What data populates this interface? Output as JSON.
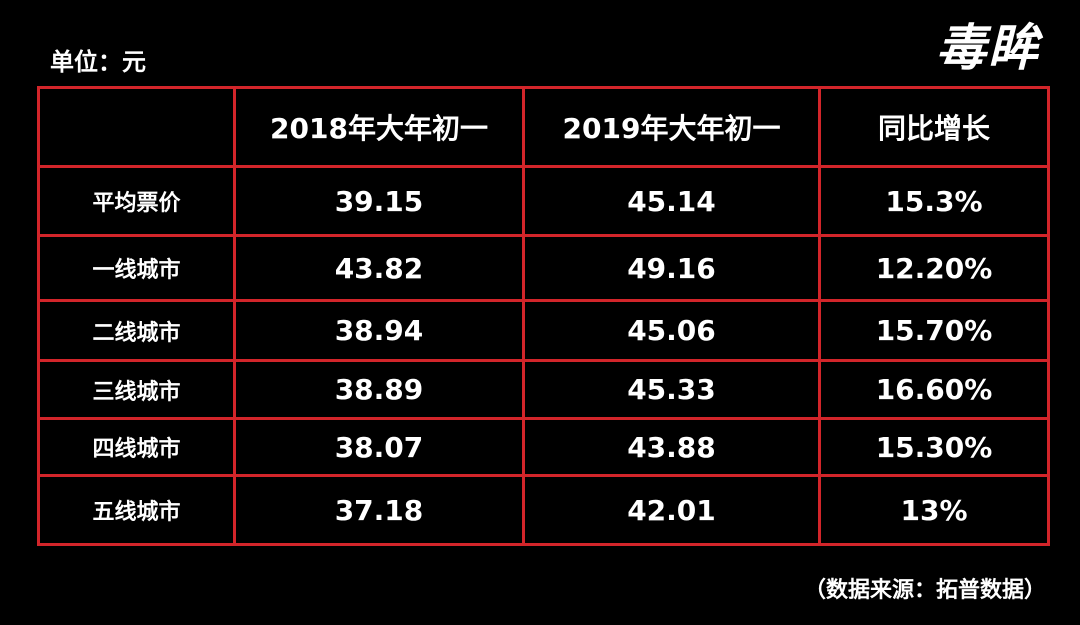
{
  "header": {
    "unit": "单位：元",
    "logo": "毒眸"
  },
  "table": {
    "columns": [
      "",
      "2018年大年初一",
      "2019年大年初一",
      "同比增长"
    ],
    "rows": [
      [
        "平均票价",
        "39.15",
        "45.14",
        "15.3%"
      ],
      [
        "一线城市",
        "43.82",
        "49.16",
        "12.20%"
      ],
      [
        "二线城市",
        "38.94",
        "45.06",
        "15.70%"
      ],
      [
        "三线城市",
        "38.89",
        "45.33",
        "16.60%"
      ],
      [
        "四线城市",
        "38.07",
        "43.88",
        "15.30%"
      ],
      [
        "五线城市",
        "37.18",
        "42.01",
        "13%"
      ]
    ]
  },
  "source": "（数据来源：拓普数据）"
}
